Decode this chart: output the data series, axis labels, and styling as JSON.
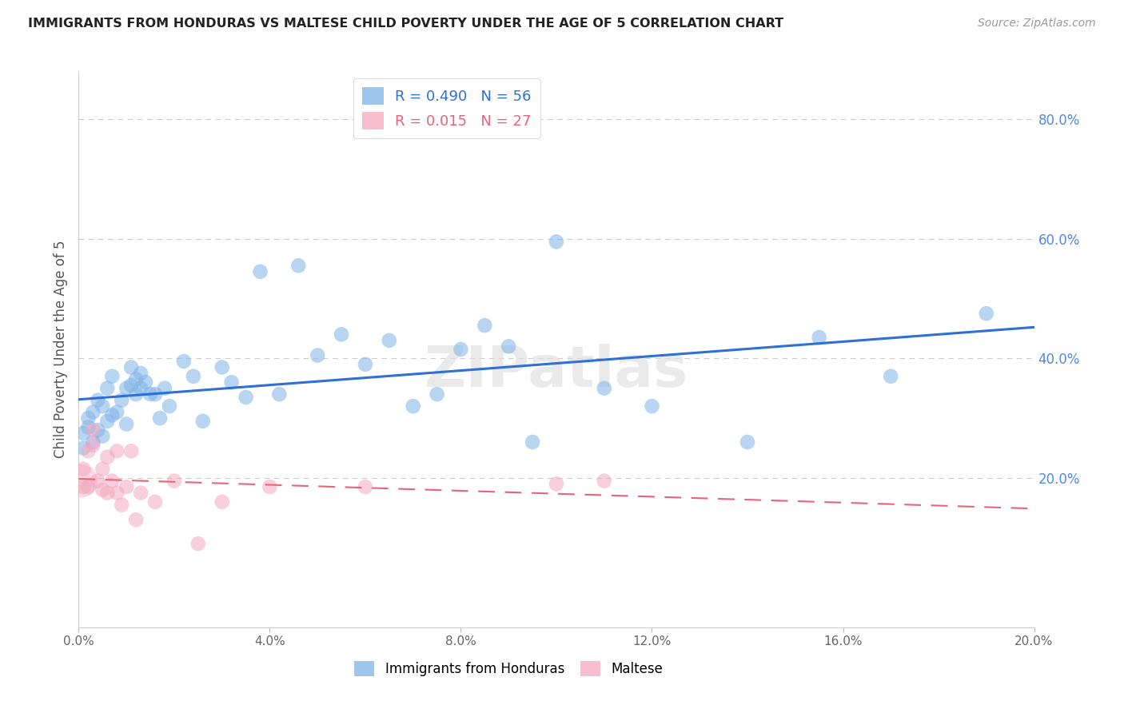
{
  "title": "IMMIGRANTS FROM HONDURAS VS MALTESE CHILD POVERTY UNDER THE AGE OF 5 CORRELATION CHART",
  "source": "Source: ZipAtlas.com",
  "ylabel": "Child Poverty Under the Age of 5",
  "xlim": [
    0.0,
    0.2
  ],
  "ylim": [
    -0.05,
    0.88
  ],
  "yticks": [
    0.2,
    0.4,
    0.6,
    0.8
  ],
  "xticks": [
    0.0,
    0.04,
    0.08,
    0.12,
    0.16,
    0.2
  ],
  "R_honduras": 0.49,
  "N_honduras": 56,
  "R_maltese": 0.015,
  "N_maltese": 27,
  "legend_labels": [
    "Immigrants from Honduras",
    "Maltese"
  ],
  "blue_color": "#7EB3E8",
  "pink_color": "#F4A8C0",
  "trend_blue": "#2E6FD8",
  "trend_pink": "#E8647A",
  "watermark": "ZIPatlas",
  "honduras_x": [
    0.001,
    0.001,
    0.002,
    0.002,
    0.003,
    0.003,
    0.004,
    0.004,
    0.005,
    0.005,
    0.006,
    0.006,
    0.007,
    0.007,
    0.008,
    0.009,
    0.01,
    0.01,
    0.011,
    0.011,
    0.012,
    0.012,
    0.013,
    0.013,
    0.014,
    0.015,
    0.016,
    0.017,
    0.018,
    0.019,
    0.022,
    0.024,
    0.026,
    0.03,
    0.032,
    0.035,
    0.038,
    0.042,
    0.046,
    0.05,
    0.055,
    0.06,
    0.065,
    0.07,
    0.075,
    0.08,
    0.085,
    0.09,
    0.095,
    0.1,
    0.11,
    0.12,
    0.14,
    0.155,
    0.17,
    0.19
  ],
  "honduras_y": [
    0.275,
    0.25,
    0.285,
    0.3,
    0.26,
    0.31,
    0.28,
    0.33,
    0.27,
    0.32,
    0.295,
    0.35,
    0.305,
    0.37,
    0.31,
    0.33,
    0.29,
    0.35,
    0.355,
    0.385,
    0.34,
    0.365,
    0.35,
    0.375,
    0.36,
    0.34,
    0.34,
    0.3,
    0.35,
    0.32,
    0.395,
    0.37,
    0.295,
    0.385,
    0.36,
    0.335,
    0.545,
    0.34,
    0.555,
    0.405,
    0.44,
    0.39,
    0.43,
    0.32,
    0.34,
    0.415,
    0.455,
    0.42,
    0.26,
    0.595,
    0.35,
    0.32,
    0.26,
    0.435,
    0.37,
    0.475
  ],
  "maltese_x": [
    0.001,
    0.001,
    0.002,
    0.002,
    0.003,
    0.003,
    0.004,
    0.005,
    0.005,
    0.006,
    0.006,
    0.007,
    0.008,
    0.008,
    0.009,
    0.01,
    0.011,
    0.012,
    0.013,
    0.016,
    0.02,
    0.025,
    0.03,
    0.04,
    0.06,
    0.1,
    0.11
  ],
  "maltese_y": [
    0.185,
    0.215,
    0.185,
    0.245,
    0.255,
    0.28,
    0.195,
    0.215,
    0.18,
    0.175,
    0.235,
    0.195,
    0.175,
    0.245,
    0.155,
    0.185,
    0.245,
    0.13,
    0.175,
    0.16,
    0.195,
    0.09,
    0.16,
    0.185,
    0.185,
    0.19,
    0.195
  ],
  "point_size": 180
}
